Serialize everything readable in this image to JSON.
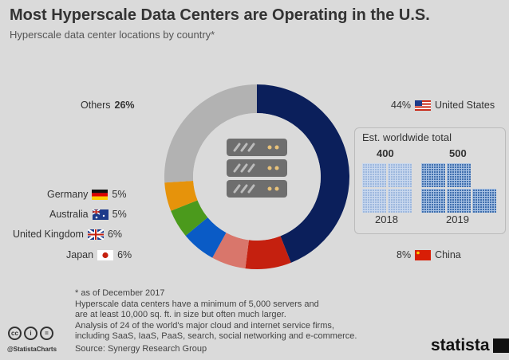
{
  "title": "Most Hyperscale Data Centers are Operating in the U.S.",
  "subtitle": "Hyperscale data center locations by country*",
  "chart_data": {
    "type": "pie",
    "style": "donut",
    "unit": "%",
    "slices": [
      {
        "name": "United States",
        "value": 44,
        "label": "44%",
        "color": "#0b1f5b"
      },
      {
        "name": "China",
        "value": 8,
        "label": "8%",
        "color": "#c5200f"
      },
      {
        "name": "Japan",
        "value": 6,
        "label": "6%",
        "color": "#d9766b"
      },
      {
        "name": "United Kingdom",
        "value": 6,
        "label": "6%",
        "color": "#0a5bc6"
      },
      {
        "name": "Australia",
        "value": 5,
        "label": "5%",
        "color": "#4b9a1c"
      },
      {
        "name": "Germany",
        "value": 5,
        "label": "5%",
        "color": "#e6930b"
      },
      {
        "name": "Others",
        "value": 26,
        "label": "26%",
        "color": "#b2b2b2"
      }
    ],
    "center_icon": "server-rack-icon",
    "inset": {
      "title": "Est. worldwide total",
      "type": "waffle",
      "categories": [
        "2018",
        "2019"
      ],
      "values": [
        400,
        500
      ],
      "labels": [
        "400",
        "500"
      ],
      "colors": [
        "#9db8de",
        "#3f6fae"
      ]
    }
  },
  "footer": {
    "note_lines": [
      "* as of December 2017",
      "Hyperscale data centers have a minimum of 5,000 servers and",
      "are at least 10,000 sq. ft. in size but often much larger.",
      "Analysis of 24 of the world's major cloud and internet service firms,",
      "including SaaS, IaaS, PaaS, search, social networking and e-commerce."
    ],
    "source": "Source: Synergy Research Group",
    "handle": "@StatistaCharts",
    "brand": "statista"
  }
}
